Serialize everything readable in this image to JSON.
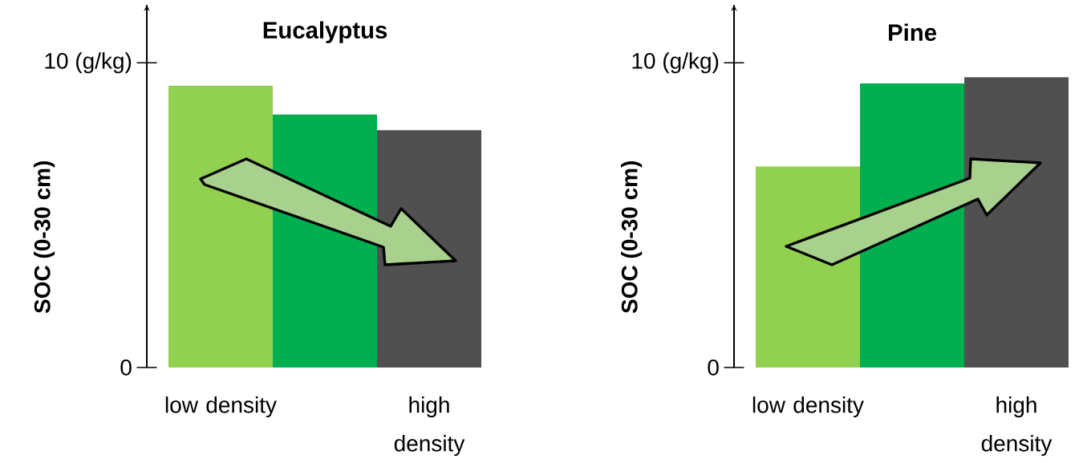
{
  "chart_data": [
    {
      "type": "bar",
      "title": "Eucalyptus",
      "ylabel": "SOC (0-30 cm)",
      "categories": [
        "low density",
        null,
        "high density"
      ],
      "values": [
        9.25,
        8.3,
        7.79
      ],
      "colors": [
        "#92d050",
        "#00b050",
        "#505050"
      ],
      "ylim": [
        0,
        11.9
      ],
      "yticks": [
        0,
        {
          "value": 10,
          "label": "10 (g/kg)"
        }
      ]
    },
    {
      "type": "bar",
      "title": "Pine",
      "ylabel": "SOC (0-30 cm)",
      "categories": [
        "low density",
        null,
        "high density"
      ],
      "values": [
        6.6,
        9.32,
        9.53
      ],
      "colors": [
        "#92d050",
        "#00b050",
        "#505050"
      ],
      "ylim": [
        0,
        11.9
      ],
      "yticks": [
        0,
        {
          "value": 10,
          "label": "10 (g/kg)"
        }
      ]
    }
  ]
}
